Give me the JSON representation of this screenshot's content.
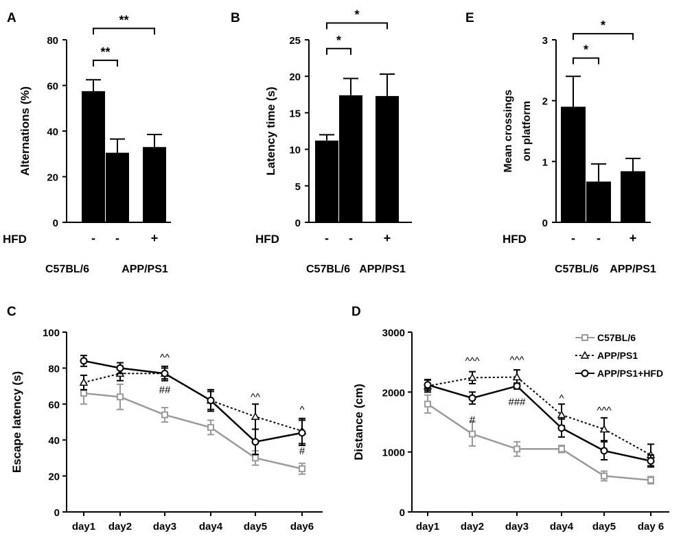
{
  "chart_data": [
    {
      "id": "A",
      "panel_label": "A",
      "type": "bar",
      "ylabel": "Alternations (%)",
      "ylim": [
        0,
        80
      ],
      "yticks": [
        "0",
        "20",
        "40",
        "60",
        "80"
      ],
      "row_label": "HFD",
      "hfd": [
        "-",
        "-",
        "+"
      ],
      "strains": [
        "C57BL/6",
        "APP/PS1"
      ],
      "values": [
        57.5,
        30.5,
        33
      ],
      "errors": [
        5,
        6,
        5.5
      ],
      "significance": [
        {
          "from": 0,
          "to": 2,
          "label": "**",
          "level": 85
        },
        {
          "from": 0,
          "to": 1,
          "label": "**",
          "level": 71
        }
      ]
    },
    {
      "id": "B",
      "panel_label": "B",
      "type": "bar",
      "ylabel": "Latency time (s)",
      "ylim": [
        0,
        25
      ],
      "yticks": [
        "0",
        "5",
        "10",
        "15",
        "20",
        "25"
      ],
      "row_label": "HFD",
      "hfd": [
        "-",
        "-",
        "+"
      ],
      "strains": [
        "C57BL/6",
        "APP/PS1"
      ],
      "values": [
        11.2,
        17.4,
        17.3
      ],
      "errors": [
        0.8,
        2.3,
        3.0
      ],
      "significance": [
        {
          "from": 0,
          "to": 2,
          "label": "*",
          "level": 27.3
        },
        {
          "from": 0,
          "to": 1,
          "label": "*",
          "level": 23.8
        }
      ]
    },
    {
      "id": "E",
      "panel_label": "E",
      "type": "bar",
      "ylabel": "Mean crossings",
      "ylabel2": "on platform",
      "ylim": [
        0,
        3
      ],
      "yticks": [
        "0",
        "1",
        "2",
        "3"
      ],
      "row_label": "HFD",
      "hfd": [
        "-",
        "-",
        "+"
      ],
      "strains": [
        "C57BL/6",
        "APP/PS1"
      ],
      "values": [
        1.9,
        0.67,
        0.84
      ],
      "errors": [
        0.5,
        0.29,
        0.21
      ],
      "significance": [
        {
          "from": 0,
          "to": 2,
          "label": "*",
          "level": 3.1
        },
        {
          "from": 0,
          "to": 1,
          "label": "*",
          "level": 2.7
        }
      ]
    },
    {
      "id": "C",
      "panel_label": "C",
      "type": "line",
      "ylabel": "Escape latency (s)",
      "ylim": [
        0,
        100
      ],
      "yticks": [
        "0",
        "20",
        "40",
        "60",
        "80",
        "100"
      ],
      "categories": [
        "day1",
        "day2",
        "day3",
        "day4",
        "day5",
        "day6"
      ],
      "series": [
        {
          "name": "C57BL/6",
          "style": "gray",
          "marker": "square",
          "values": [
            66,
            64,
            54,
            47,
            30,
            24
          ],
          "errors": [
            6,
            7,
            4,
            4,
            4,
            3
          ]
        },
        {
          "name": "APP/PS1",
          "style": "dotted",
          "marker": "triangle",
          "values": [
            72,
            77,
            77,
            62,
            53,
            45
          ],
          "errors": [
            4,
            4,
            4,
            6,
            7,
            7
          ]
        },
        {
          "name": "APP/PS1+HFD",
          "style": "black",
          "marker": "circle",
          "values": [
            84,
            80,
            77,
            62,
            39,
            44
          ],
          "errors": [
            3,
            3,
            3,
            5,
            7,
            7
          ]
        }
      ],
      "annotations": [
        {
          "day": 2,
          "text": "^^",
          "y": 84
        },
        {
          "day": 2,
          "text": "##",
          "y": 66
        },
        {
          "day": 4,
          "text": "^^",
          "y": 62
        },
        {
          "day": 5,
          "text": "^",
          "y": 55
        },
        {
          "day": 5,
          "text": "#",
          "y": 32
        }
      ]
    },
    {
      "id": "D",
      "panel_label": "D",
      "type": "line",
      "ylabel": "Distance (cm)",
      "ylim": [
        0,
        3000
      ],
      "yticks": [
        "0",
        "1000",
        "2000",
        "3000"
      ],
      "categories": [
        "day1",
        "day2",
        "day3",
        "day4",
        "day5",
        "day 6"
      ],
      "series": [
        {
          "name": "C57BL/6",
          "style": "gray",
          "marker": "square",
          "values": [
            1800,
            1300,
            1050,
            1050,
            600,
            530
          ],
          "errors": [
            150,
            200,
            120,
            60,
            80,
            60
          ]
        },
        {
          "name": "APP/PS1",
          "style": "dotted",
          "marker": "triangle",
          "values": [
            2100,
            2240,
            2250,
            1620,
            1380,
            950
          ],
          "errors": [
            100,
            100,
            120,
            180,
            190,
            180
          ]
        },
        {
          "name": "APP/PS1+HFD",
          "style": "black",
          "marker": "circle",
          "values": [
            2120,
            1900,
            2100,
            1400,
            1020,
            850
          ],
          "errors": [
            90,
            100,
            50,
            150,
            150,
            100
          ]
        }
      ],
      "annotations": [
        {
          "day": 1,
          "text": "^^^",
          "y": 2460
        },
        {
          "day": 1,
          "text": "#",
          "y": 1480
        },
        {
          "day": 2,
          "text": "^^^",
          "y": 2480
        },
        {
          "day": 2,
          "text": "###",
          "y": 1780
        },
        {
          "day": 3,
          "text": "^",
          "y": 1840
        },
        {
          "day": 4,
          "text": "^^^",
          "y": 1640
        }
      ]
    }
  ]
}
